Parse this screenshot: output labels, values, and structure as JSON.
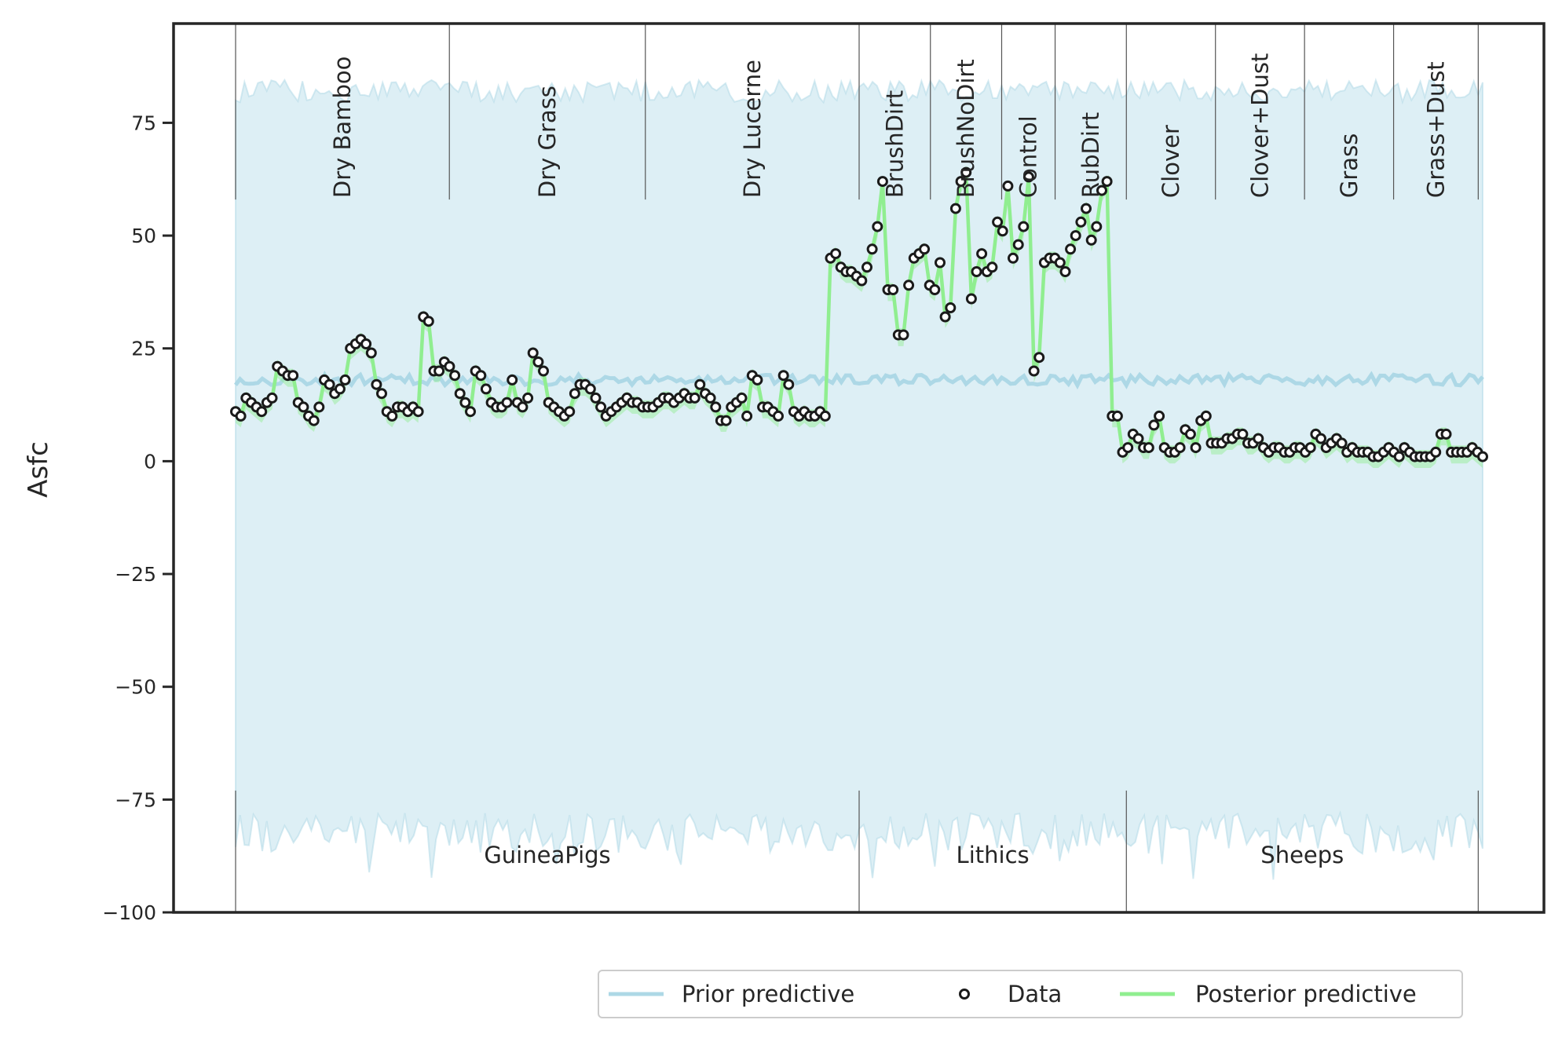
{
  "chart_data": {
    "type": "line",
    "title": "",
    "xlabel": "",
    "ylabel": "Asfc",
    "ylim": [
      -100,
      97
    ],
    "yticks": [
      -100,
      -75,
      -50,
      -25,
      0,
      25,
      50,
      75
    ],
    "n_points": 281,
    "groups": [
      {
        "name": "GuineaPigs",
        "start": 0,
        "end": 140
      },
      {
        "name": "Lithics",
        "start": 140,
        "end": 200
      },
      {
        "name": "Sheeps",
        "start": 200,
        "end": 279
      }
    ],
    "categories": [
      {
        "name": "Dry Bamboo",
        "start": 0,
        "end": 48
      },
      {
        "name": "Dry Grass",
        "start": 48,
        "end": 92
      },
      {
        "name": "Dry Lucerne",
        "start": 92,
        "end": 140
      },
      {
        "name": "BrushDirt",
        "start": 140,
        "end": 156
      },
      {
        "name": "BrushNoDirt",
        "start": 156,
        "end": 172
      },
      {
        "name": "Control",
        "start": 172,
        "end": 184
      },
      {
        "name": "RubDirt",
        "start": 184,
        "end": 200
      },
      {
        "name": "Clover",
        "start": 200,
        "end": 220
      },
      {
        "name": "Clover+Dust",
        "start": 220,
        "end": 240
      },
      {
        "name": "Grass",
        "start": 240,
        "end": 260
      },
      {
        "name": "Grass+Dust",
        "start": 260,
        "end": 279
      }
    ],
    "series": [
      {
        "name": "Prior predictive",
        "color": "#add8e6",
        "mean_level": 18,
        "band_upper": 82,
        "band_lower": -78
      },
      {
        "name": "Data",
        "color": "#1a1a1a",
        "marker": "open-circle"
      },
      {
        "name": "Posterior predictive",
        "color": "#90ee90"
      }
    ],
    "data_segments": [
      {
        "start": 0,
        "values": [
          11,
          10,
          14,
          13,
          12,
          11,
          13,
          14,
          21,
          20,
          19,
          19,
          13,
          12,
          10,
          9,
          12,
          18,
          17,
          15,
          16,
          18,
          25,
          26,
          27,
          26,
          24,
          17,
          15,
          11,
          10,
          12,
          12,
          11,
          12,
          11,
          32,
          31,
          20,
          20,
          22,
          21,
          19,
          15,
          13,
          11,
          20,
          19,
          16,
          13,
          12,
          12,
          13,
          18,
          13,
          12,
          14,
          24,
          22,
          20,
          13,
          12,
          11,
          10,
          11,
          15,
          17,
          17,
          16,
          14,
          12,
          10,
          11,
          12,
          13,
          14,
          13,
          13,
          12,
          12,
          12,
          13,
          14,
          14,
          13,
          14,
          15,
          14,
          14,
          17,
          15,
          14,
          12,
          9,
          9,
          12,
          13,
          14,
          10,
          19,
          18,
          12,
          12,
          11,
          10,
          19,
          17,
          11,
          10,
          11,
          10,
          10,
          11,
          10
        ]
      },
      {
        "start": 140,
        "values": [
          45,
          46,
          43,
          42,
          42,
          41,
          40,
          43,
          47,
          52,
          62,
          38,
          38,
          28,
          28,
          39,
          45,
          46,
          47,
          39,
          38,
          44,
          32,
          34,
          56,
          62,
          64,
          36,
          42,
          46,
          42,
          43,
          53,
          51,
          61,
          45,
          48,
          52,
          63,
          20,
          23,
          44,
          45,
          45,
          44,
          42,
          47,
          50,
          53,
          56,
          49,
          52,
          60,
          62
        ]
      },
      {
        "start": 194,
        "values": [
          10,
          10,
          2,
          3,
          6,
          5,
          3,
          3,
          8,
          10,
          3,
          2,
          2,
          3,
          7,
          6,
          3,
          9,
          10,
          4,
          4,
          4,
          5,
          5,
          6,
          6,
          4,
          4,
          5,
          3,
          2,
          3,
          3,
          2,
          2,
          3,
          3,
          2,
          3,
          6,
          5,
          3,
          4,
          5,
          4,
          2,
          3,
          2,
          2,
          2,
          1,
          1,
          2,
          3,
          2,
          1,
          3,
          2,
          1,
          1,
          1,
          1,
          2,
          6,
          6,
          2,
          2,
          2,
          2,
          3,
          2,
          1
        ]
      }
    ]
  },
  "legend": {
    "items": [
      {
        "label": "Prior predictive",
        "type": "line",
        "color": "#add8e6"
      },
      {
        "label": "Data",
        "type": "marker",
        "color": "#1a1a1a"
      },
      {
        "label": "Posterior predictive",
        "type": "line",
        "color": "#90ee90"
      }
    ]
  }
}
